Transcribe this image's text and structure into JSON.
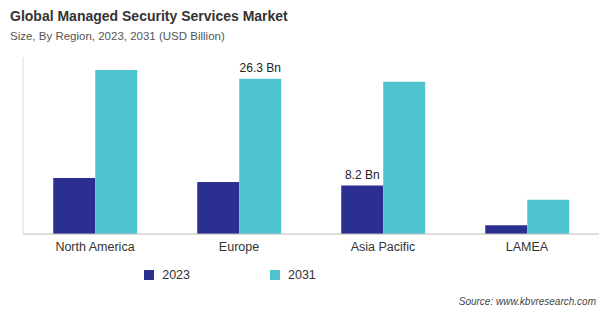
{
  "chart_data": {
    "type": "bar",
    "title": "Global Managed Security Services Market",
    "subtitle": "Size, By Region, 2023, 2031 (USD Billion)",
    "source": "Source: www.kbvresearch.com",
    "categories": [
      "North America",
      "Europe",
      "Asia Pacific",
      "LAMEA"
    ],
    "series": [
      {
        "name": "2023",
        "color": "#2b3090",
        "values": [
          9.5,
          8.8,
          8.2,
          1.5
        ],
        "value_labels": [
          null,
          null,
          "8.2 Bn",
          null
        ]
      },
      {
        "name": "2031",
        "color": "#4fc4cf",
        "values": [
          27.8,
          26.3,
          25.8,
          5.8
        ],
        "value_labels": [
          null,
          "26.3 Bn",
          null,
          null
        ]
      }
    ],
    "ylim": [
      0,
      30
    ],
    "yticks": [],
    "grid": false,
    "legend": "bottom",
    "data_labels": true,
    "tick_labels": "x"
  }
}
